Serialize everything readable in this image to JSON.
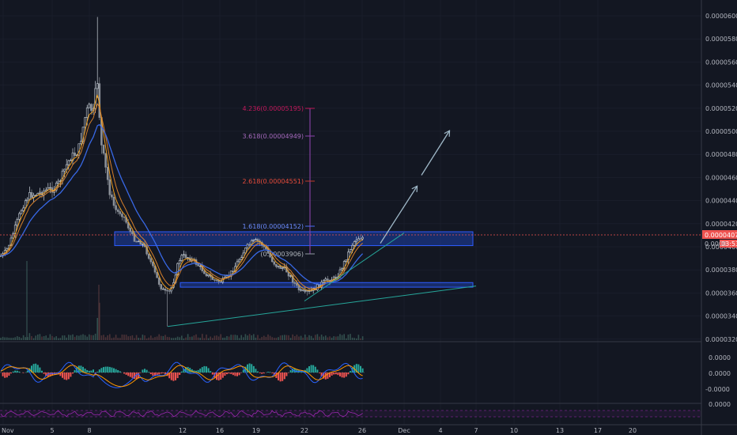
{
  "colors": {
    "background": "#131722",
    "axis_text": "#b2b5be",
    "grid": "#1e2230",
    "up_candle": "#c9d1d9",
    "down_candle": "#8b9098",
    "zone_fill": "#1e3fa8",
    "zone_stroke": "#2e5cff",
    "trendline": "#26a69a",
    "arrow": "#9fb8c8",
    "price_line": "#ef5350",
    "price_badge": "#ef5350",
    "ma_fast": "#f7a21b",
    "ma_mid": "#e0852a",
    "ma_slow": "#3a6df0",
    "fib_pink": "#c2185b",
    "fib_purple": "#8e44ad",
    "fib_red": "#c0392b",
    "fib_blue": "#4a6cf7",
    "fib_grey": "#9098a1",
    "macd_line": "#2962ff",
    "signal_line": "#ff9800",
    "hist_up": "#26a69a",
    "hist_down": "#ef5350",
    "rsi_line": "#9c27b0"
  },
  "price_axis": {
    "ticks": [
      "0.00006000",
      "0.00005800",
      "0.00005600",
      "0.00005400",
      "0.00005200",
      "0.00005000",
      "0.00004800",
      "0.00004600",
      "0.00004400",
      "0.00004200",
      "0.00004000",
      "0.00003800",
      "0.00003600",
      "0.00003400",
      "0.00003200"
    ],
    "last_price": "0.00004077",
    "countdown": "03:53"
  },
  "macd_axis": {
    "ticks": [
      "0.0000",
      "0.0000",
      "-0.0000"
    ]
  },
  "rsi_axis": {
    "ticks": [
      "0.0000"
    ]
  },
  "time_axis": {
    "labels": [
      "Nov",
      "5",
      "8",
      "12",
      "16",
      "19",
      "22",
      "26",
      "Dec",
      "4",
      "7",
      "10",
      "13",
      "17",
      "20"
    ]
  },
  "fib_levels": [
    {
      "label": "4.236(0.00005195)",
      "color": "fib_pink"
    },
    {
      "label": "3.618(0.00004949)",
      "color": "fib_purple"
    },
    {
      "label": "2.618(0.00004551)",
      "color": "fib_red"
    },
    {
      "label": "1.618(0.00004152)",
      "color": "fib_blue"
    },
    {
      "label": "(0.00003906)",
      "color": "fib_grey"
    }
  ],
  "chart_data": {
    "type": "candlestick",
    "title": "",
    "xlabel": "",
    "ylabel": "",
    "ylim": [
      3.1e-05,
      6.13e-05
    ],
    "legend": "none",
    "grid": true,
    "series": [
      {
        "name": "",
        "anchors": {
          "x": [
            "Nov 1",
            "Nov 3",
            "Nov 5",
            "Nov 7",
            "Nov 8",
            "Nov 10",
            "Nov 12",
            "Nov 14",
            "Nov 16",
            "Nov 19",
            "Nov 22",
            "Nov 24",
            "Nov 26",
            "Nov 28",
            "Nov 30"
          ],
          "close": [
            3.92e-05,
            4.45e-05,
            4.5e-05,
            4.8e-05,
            5.2e-05,
            4.3e-05,
            4.05e-05,
            3.6e-05,
            3.92e-05,
            3.7e-05,
            4.05e-05,
            3.82e-05,
            3.6e-05,
            3.72e-05,
            4.08e-05
          ]
        }
      }
    ],
    "moving_averages": [
      "ma_fast",
      "ma_mid",
      "ma_slow"
    ],
    "zones": [
      {
        "top": 4.13e-05,
        "bottom": 4.01e-05
      },
      {
        "top": 3.69e-05,
        "bottom": 3.65e-05
      }
    ],
    "trendlines": [
      {
        "from": [
          "Nov 14",
          3.31e-05
        ],
        "to": [
          "Dec 10",
          3.66e-05
        ]
      },
      {
        "from": [
          "Nov 26",
          3.53e-05
        ],
        "to": [
          "Dec 4",
          4.12e-05
        ]
      }
    ],
    "projection_arrows": [
      {
        "from": [
          "Nov 30",
          4.03e-05
        ],
        "to": [
          "Dec 6",
          4.52e-05
        ]
      },
      {
        "from": [
          "Dec 4",
          4.62e-05
        ],
        "to": [
          "Dec 9",
          5e-05
        ]
      }
    ]
  }
}
